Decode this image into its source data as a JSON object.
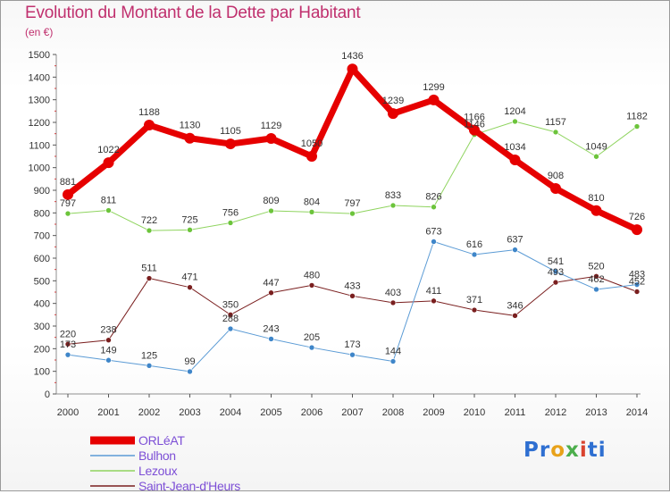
{
  "chart_data": {
    "type": "line",
    "title": "Evolution du Montant de la Dette par Habitant",
    "subtitle": "(en €)",
    "x": [
      "2000",
      "2001",
      "2002",
      "2003",
      "2004",
      "2005",
      "2006",
      "2007",
      "2008",
      "2009",
      "2010",
      "2011",
      "2012",
      "2013",
      "2014"
    ],
    "ylim": [
      0,
      1500
    ],
    "y_ticks": [
      0,
      100,
      200,
      300,
      400,
      500,
      600,
      700,
      800,
      900,
      1000,
      1100,
      1200,
      1300,
      1400,
      1500
    ],
    "grid": "none",
    "legend_placement": "bottom-left",
    "series": [
      {
        "name": "ORLéAT",
        "color": "#e60000",
        "values": [
          881,
          1022,
          1188,
          1130,
          1105,
          1129,
          1050,
          1436,
          1239,
          1299,
          1166,
          1034,
          908,
          810,
          726
        ]
      },
      {
        "name": "Bulhon",
        "color": "#5b9bd5",
        "values": [
          173,
          149,
          125,
          99,
          288,
          243,
          205,
          173,
          144,
          673,
          616,
          637,
          541,
          462,
          483
        ]
      },
      {
        "name": "Lezoux",
        "color": "#8fd45f",
        "values": [
          797,
          811,
          722,
          725,
          756,
          809,
          804,
          797,
          833,
          826,
          1146,
          1204,
          1157,
          1049,
          1182
        ]
      },
      {
        "name": "Saint-Jean-d'Heurs",
        "color": "#7a1f1f",
        "values": [
          220,
          238,
          511,
          471,
          350,
          447,
          480,
          433,
          403,
          411,
          371,
          346,
          493,
          520,
          452
        ]
      }
    ]
  },
  "brand": {
    "p1": "Pr",
    "p2": "o",
    "p3": "x",
    "p4": "i",
    "p5": "ti"
  }
}
